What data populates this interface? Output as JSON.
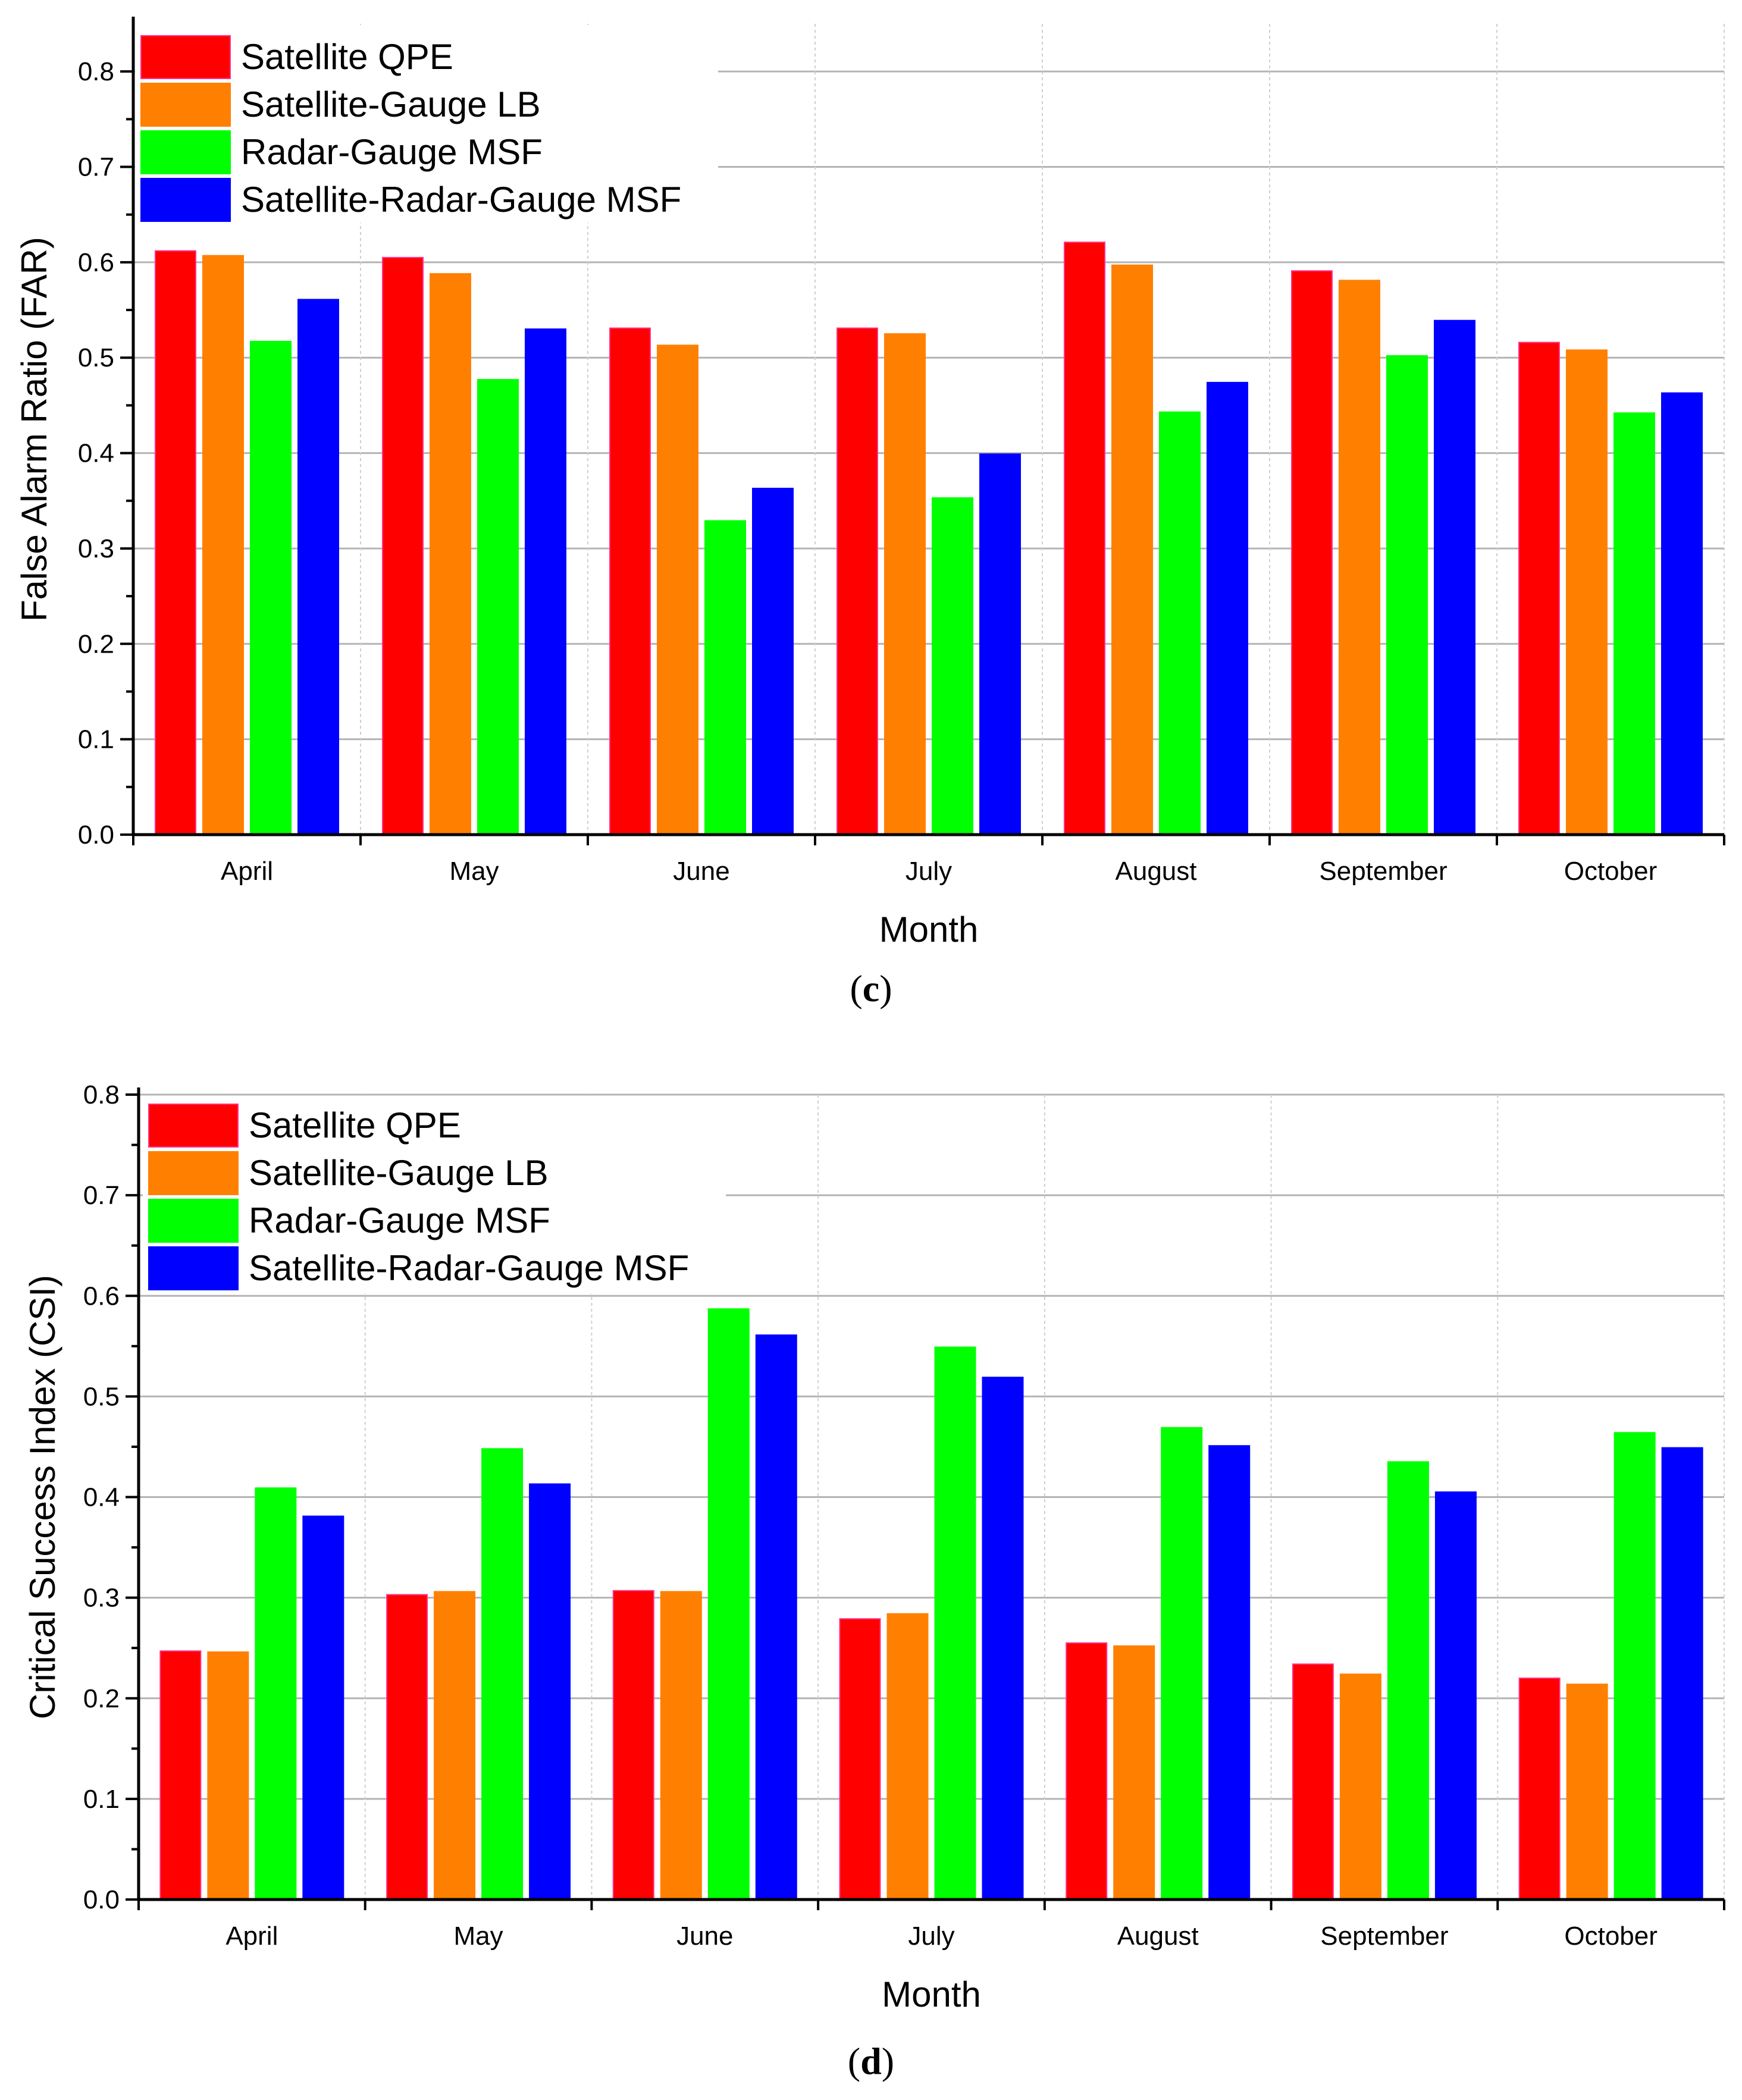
{
  "chart_data": [
    {
      "type": "bar",
      "caption": "c",
      "ylabel": "False Alarm Ratio (FAR)",
      "xlabel": "Month",
      "ylim": [
        0,
        0.85
      ],
      "yticks": [
        "0.0",
        "0.1",
        "0.2",
        "0.3",
        "0.4",
        "0.5",
        "0.6",
        "0.7",
        "0.8"
      ],
      "categories": [
        "April",
        "May",
        "June",
        "July",
        "August",
        "September",
        "October"
      ],
      "legend_position": "top-left",
      "grid": true,
      "series": [
        {
          "name": "Satellite QPE",
          "color": "#ff0000",
          "values": [
            0.612,
            0.605,
            0.531,
            0.531,
            0.621,
            0.591,
            0.516
          ]
        },
        {
          "name": "Satellite-Gauge LB",
          "color": "#ff8000",
          "values": [
            0.607,
            0.588,
            0.513,
            0.525,
            0.597,
            0.581,
            0.508
          ]
        },
        {
          "name": "Radar-Gauge MSF",
          "color": "#00ff00",
          "values": [
            0.517,
            0.477,
            0.329,
            0.353,
            0.443,
            0.502,
            0.442
          ]
        },
        {
          "name": "Satellite-Radar-Gauge MSF",
          "color": "#0000ff",
          "values": [
            0.561,
            0.53,
            0.363,
            0.399,
            0.474,
            0.539,
            0.463
          ]
        }
      ]
    },
    {
      "type": "bar",
      "caption": "d",
      "ylabel": "Critical Success Index (CSI)",
      "xlabel": "Month",
      "ylim": [
        0,
        0.8
      ],
      "yticks": [
        "0.0",
        "0.1",
        "0.2",
        "0.3",
        "0.4",
        "0.5",
        "0.6",
        "0.7",
        "0.8"
      ],
      "categories": [
        "April",
        "May",
        "June",
        "July",
        "August",
        "September",
        "October"
      ],
      "legend_position": "top-left",
      "grid": true,
      "series": [
        {
          "name": "Satellite QPE",
          "color": "#ff0000",
          "values": [
            0.247,
            0.303,
            0.307,
            0.279,
            0.255,
            0.234,
            0.22
          ]
        },
        {
          "name": "Satellite-Gauge LB",
          "color": "#ff8000",
          "values": [
            0.246,
            0.306,
            0.306,
            0.284,
            0.252,
            0.224,
            0.214
          ]
        },
        {
          "name": "Radar-Gauge MSF",
          "color": "#00ff00",
          "values": [
            0.409,
            0.448,
            0.587,
            0.549,
            0.469,
            0.435,
            0.464
          ]
        },
        {
          "name": "Satellite-Radar-Gauge MSF",
          "color": "#0000ff",
          "values": [
            0.381,
            0.413,
            0.561,
            0.519,
            0.451,
            0.405,
            0.449
          ]
        }
      ]
    }
  ]
}
